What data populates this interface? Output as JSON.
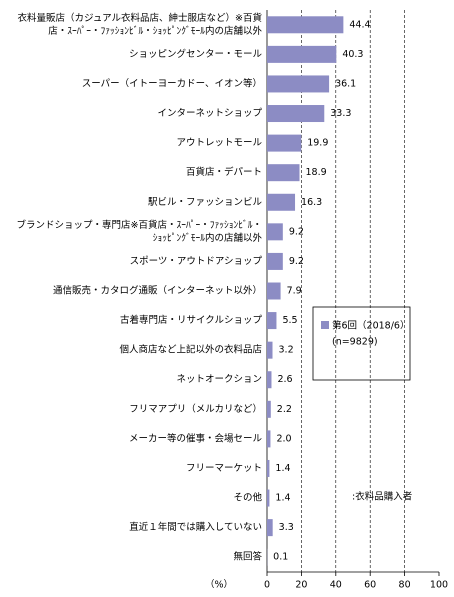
{
  "chart_data": {
    "type": "bar",
    "orientation": "horizontal",
    "categories": [
      [
        "衣料量販店（カジュアル衣料品店、紳士服店など）※百貨",
        "店・ｽｰﾊﾟｰ・ﾌｧｯｼｮﾝﾋﾞﾙ・ｼｮｯﾋﾟﾝｸﾞﾓｰﾙ内の店舗以外"
      ],
      [
        "ショッピングセンター・モール"
      ],
      [
        "スーパー（イトーヨーカドー、イオン等）"
      ],
      [
        "インターネットショップ"
      ],
      [
        "アウトレットモール"
      ],
      [
        "百貨店・デパート"
      ],
      [
        "駅ビル・ファッションビル"
      ],
      [
        "ブランドショップ・専門店※百貨店・ｽｰﾊﾟｰ・ﾌｧｯｼｮﾝﾋﾞﾙ・",
        "ｼｮｯﾋﾟﾝｸﾞﾓｰﾙ内の店舗以外"
      ],
      [
        "スポーツ・アウトドアショップ"
      ],
      [
        "通信販売・カタログ通販（インターネット以外）"
      ],
      [
        "古着専門店・リサイクルショップ"
      ],
      [
        "個人商店など上記以外の衣料品店"
      ],
      [
        "ネットオークション"
      ],
      [
        "フリマアプリ（メルカリなど）"
      ],
      [
        "メーカー等の催事・会場セール"
      ],
      [
        "フリーマーケット"
      ],
      [
        "その他"
      ],
      [
        "直近１年間では購入していない"
      ],
      [
        "無回答"
      ]
    ],
    "series": [
      {
        "name": "第6回（2018/6）",
        "color": "#8c8cc4",
        "values": [
          44.4,
          40.3,
          36.1,
          33.3,
          19.9,
          18.9,
          16.3,
          9.2,
          9.2,
          7.9,
          5.5,
          3.2,
          2.6,
          2.2,
          2.0,
          1.4,
          1.4,
          3.3,
          0.1
        ],
        "value_labels": [
          "44.4",
          "40.3",
          "36.1",
          "33.3",
          "19.9",
          "18.9",
          "16.3",
          "9.2",
          "9.2",
          "7.9",
          "5.5",
          "3.2",
          "2.6",
          "2.2",
          "2.0",
          "1.4",
          "1.4",
          "3.3",
          "0.1"
        ]
      }
    ],
    "legend_note": "(n=9829)",
    "annotation": ":衣料品購入者",
    "xlabel": "（%）",
    "xlim": [
      0,
      100
    ],
    "xticks": [
      0,
      20,
      40,
      60,
      80,
      100
    ],
    "grid": true
  }
}
